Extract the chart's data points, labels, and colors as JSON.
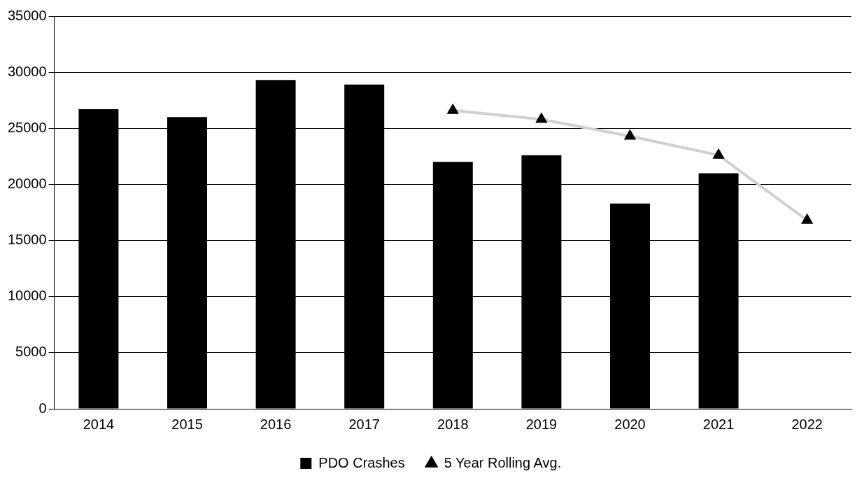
{
  "chart_data": {
    "type": "bar",
    "categories": [
      "2014",
      "2015",
      "2016",
      "2017",
      "2018",
      "2019",
      "2020",
      "2021",
      "2022"
    ],
    "series": [
      {
        "name": "PDO Crashes",
        "color": "#000000",
        "values": [
          26700,
          26000,
          29300,
          28900,
          22000,
          22600,
          18300,
          21000,
          null
        ]
      },
      {
        "name": "5 Year Rolling Avg.",
        "type": "line",
        "color": "#d0d0d0",
        "marker": "triangle",
        "values": [
          null,
          null,
          null,
          null,
          26600,
          25800,
          24300,
          22600,
          16800
        ]
      }
    ],
    "ylim": [
      0,
      35000
    ],
    "yticks": [
      0,
      5000,
      10000,
      15000,
      20000,
      25000,
      30000,
      35000
    ],
    "grid": "y",
    "legend": "bottom"
  }
}
